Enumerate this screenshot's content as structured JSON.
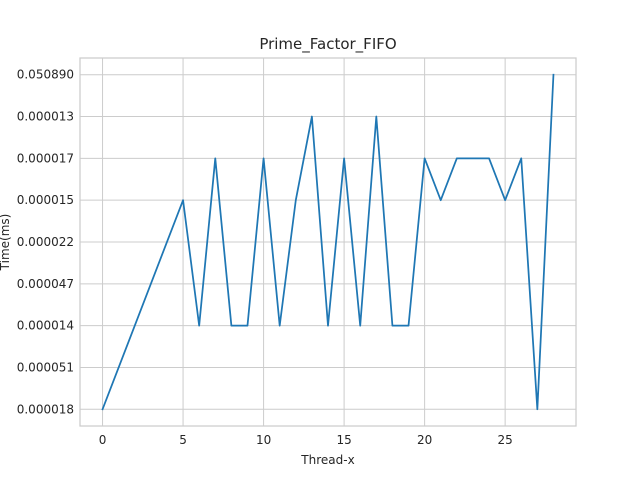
{
  "chart_data": {
    "type": "line",
    "title": "Prime_Factor_FIFO",
    "xlabel": "Thread-x",
    "ylabel": "Time(ms)",
    "x_ticks": [
      0,
      5,
      10,
      15,
      20,
      25
    ],
    "xlim": [
      -1.4,
      29.4
    ],
    "y_categories": [
      "0.000018",
      "0.000051",
      "0.000014",
      "0.000047",
      "0.000022",
      "0.000015",
      "0.000017",
      "0.000013",
      "0.050890"
    ],
    "series": [
      {
        "color": "#1f77b4",
        "x": [
          0,
          5,
          6,
          7,
          8,
          9,
          10,
          11,
          12,
          13,
          14,
          15,
          16,
          17,
          18,
          19,
          20,
          21,
          22,
          23,
          24,
          25,
          26,
          27,
          28
        ],
        "y": [
          "0.000018",
          "0.000015",
          "0.000014",
          "0.000017",
          "0.000014",
          "0.000014",
          "0.000017",
          "0.000014",
          "0.000015",
          "0.000013",
          "0.000014",
          "0.000017",
          "0.000014",
          "0.000013",
          "0.000014",
          "0.000014",
          "0.000017",
          "0.000015",
          "0.000017",
          "0.000017",
          "0.000017",
          "0.000015",
          "0.000017",
          "0.000018",
          "0.050890"
        ]
      }
    ],
    "grid": true,
    "colors": {
      "background": "#ffffff",
      "grid": "#cccccc",
      "axes": "#cccccc",
      "text": "#262626"
    }
  }
}
